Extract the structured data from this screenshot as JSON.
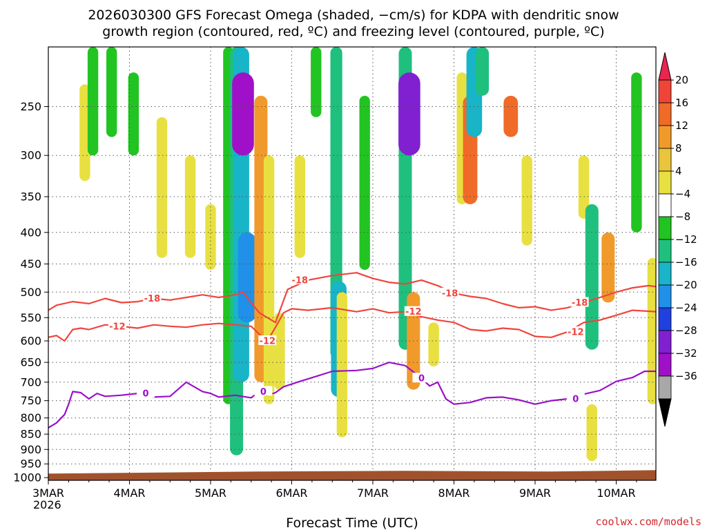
{
  "chart_data": {
    "type": "heatmap",
    "title_line1": "2026030300 GFS Forecast Omega (shaded, −cm/s) for KDPA with dendritic snow",
    "title_line2": "growth region (contoured, red, ºC) and freezing level (contoured, purple, ºC)",
    "xlabel": "Forecast Time (UTC)",
    "credit": "coolwx.com/models",
    "x_ticks": [
      "3MAR",
      "4MAR",
      "5MAR",
      "6MAR",
      "7MAR",
      "8MAR",
      "9MAR",
      "10MAR"
    ],
    "x_year": "2026",
    "x_range_days": [
      0,
      7.5
    ],
    "y_ticks": [
      250,
      300,
      350,
      400,
      450,
      500,
      550,
      600,
      650,
      700,
      750,
      800,
      850,
      900,
      950,
      1000
    ],
    "y_range_hpa": [
      200,
      1010
    ],
    "ground_pressure_hpa": 985,
    "colorbar": {
      "labels": [
        "20",
        "16",
        "12",
        "8",
        "4",
        "−4",
        "−8",
        "−12",
        "−16",
        "−20",
        "−24",
        "−28",
        "−32",
        "−36"
      ],
      "colors": [
        "#e8264f",
        "#f04438",
        "#f06a28",
        "#f09a2c",
        "#e9c43c",
        "#e8e040",
        "#ffffff",
        "#22c422",
        "#1fc07e",
        "#18b4c8",
        "#2090e8",
        "#2040e0",
        "#8020d0",
        "#a010c8",
        "#a8a8a8",
        "#000000"
      ]
    },
    "omega_blobs": [
      {
        "t": 0.45,
        "p": [
          230,
          330
        ],
        "v": 6
      },
      {
        "t": 0.55,
        "p": [
          200,
          300
        ],
        "v": -6
      },
      {
        "t": 0.78,
        "p": [
          200,
          280
        ],
        "v": -6
      },
      {
        "t": 1.05,
        "p": [
          220,
          300
        ],
        "v": -6
      },
      {
        "t": 1.4,
        "p": [
          260,
          440
        ],
        "v": 6
      },
      {
        "t": 1.75,
        "p": [
          300,
          440
        ],
        "v": 6
      },
      {
        "t": 2.0,
        "p": [
          360,
          460
        ],
        "v": 6
      },
      {
        "t": 2.22,
        "p": [
          200,
          760
        ],
        "v": -6
      },
      {
        "t": 2.32,
        "p": [
          200,
          920
        ],
        "v": -10
      },
      {
        "t": 2.38,
        "p": [
          200,
          700
        ],
        "v": -14
      },
      {
        "t": 2.4,
        "p": [
          220,
          300
        ],
        "v": -28
      },
      {
        "t": 2.45,
        "p": [
          400,
          560
        ],
        "v": -18
      },
      {
        "t": 2.62,
        "p": [
          240,
          700
        ],
        "v": 10
      },
      {
        "t": 2.72,
        "p": [
          300,
          760
        ],
        "v": 6
      },
      {
        "t": 2.85,
        "p": [
          540,
          720
        ],
        "v": 6
      },
      {
        "t": 3.1,
        "p": [
          300,
          440
        ],
        "v": 6
      },
      {
        "t": 3.3,
        "p": [
          200,
          260
        ],
        "v": -6
      },
      {
        "t": 3.55,
        "p": [
          200,
          640
        ],
        "v": -8
      },
      {
        "t": 3.58,
        "p": [
          480,
          740
        ],
        "v": -14
      },
      {
        "t": 3.62,
        "p": [
          500,
          860
        ],
        "v": 6
      },
      {
        "t": 3.9,
        "p": [
          240,
          460
        ],
        "v": -6
      },
      {
        "t": 4.4,
        "p": [
          200,
          620
        ],
        "v": -10
      },
      {
        "t": 4.45,
        "p": [
          220,
          300
        ],
        "v": -24
      },
      {
        "t": 4.5,
        "p": [
          500,
          720
        ],
        "v": 10
      },
      {
        "t": 4.75,
        "p": [
          560,
          660
        ],
        "v": 6
      },
      {
        "t": 5.1,
        "p": [
          220,
          360
        ],
        "v": 6
      },
      {
        "t": 5.2,
        "p": [
          240,
          360
        ],
        "v": 12
      },
      {
        "t": 5.25,
        "p": [
          200,
          280
        ],
        "v": -14
      },
      {
        "t": 5.35,
        "p": [
          200,
          240
        ],
        "v": -10
      },
      {
        "t": 5.7,
        "p": [
          240,
          280
        ],
        "v": 12
      },
      {
        "t": 5.9,
        "p": [
          300,
          420
        ],
        "v": 6
      },
      {
        "t": 6.6,
        "p": [
          300,
          380
        ],
        "v": 6
      },
      {
        "t": 6.7,
        "p": [
          360,
          620
        ],
        "v": -10
      },
      {
        "t": 6.7,
        "p": [
          760,
          940
        ],
        "v": 6
      },
      {
        "t": 6.9,
        "p": [
          400,
          520
        ],
        "v": 10
      },
      {
        "t": 7.25,
        "p": [
          220,
          400
        ],
        "v": -6
      },
      {
        "t": 7.45,
        "p": [
          440,
          760
        ],
        "v": 6
      }
    ],
    "contours": [
      {
        "label": "-18",
        "color": "#f0443c",
        "label_t": [
          1.28,
          3.1,
          4.95,
          6.55
        ],
        "t": [
          0,
          0.1,
          0.3,
          0.5,
          0.7,
          0.9,
          1.1,
          1.3,
          1.5,
          1.7,
          1.9,
          2.1,
          2.3,
          2.4,
          2.5,
          2.6,
          2.8,
          2.95,
          3.2,
          3.5,
          3.8,
          4.0,
          4.2,
          4.4,
          4.6,
          4.8,
          5.0,
          5.2,
          5.4,
          5.6,
          5.8,
          6.0,
          6.2,
          6.4,
          6.6,
          6.8,
          7.0,
          7.2,
          7.4,
          7.5
        ],
        "p": [
          535,
          525,
          518,
          522,
          512,
          520,
          518,
          512,
          515,
          510,
          505,
          510,
          505,
          500,
          520,
          540,
          560,
          495,
          478,
          470,
          465,
          475,
          482,
          485,
          478,
          488,
          502,
          508,
          512,
          522,
          530,
          528,
          535,
          530,
          520,
          510,
          500,
          492,
          488,
          490
        ]
      },
      {
        "label": "-12",
        "color": "#f0443c",
        "label_t": [
          0.85,
          2.7,
          4.5,
          6.5
        ],
        "t": [
          0,
          0.1,
          0.2,
          0.3,
          0.4,
          0.5,
          0.7,
          0.9,
          1.1,
          1.3,
          1.5,
          1.7,
          1.9,
          2.1,
          2.3,
          2.5,
          2.6,
          2.7,
          2.8,
          2.9,
          3.0,
          3.2,
          3.5,
          3.8,
          4.0,
          4.2,
          4.4,
          4.6,
          4.8,
          5.0,
          5.2,
          5.4,
          5.6,
          5.8,
          6.0,
          6.2,
          6.4,
          6.6,
          6.8,
          7.0,
          7.2,
          7.5
        ],
        "p": [
          592,
          588,
          600,
          575,
          572,
          575,
          565,
          568,
          572,
          565,
          568,
          570,
          565,
          562,
          565,
          568,
          585,
          600,
          570,
          540,
          532,
          535,
          530,
          538,
          532,
          540,
          538,
          548,
          555,
          560,
          575,
          578,
          572,
          575,
          590,
          592,
          580,
          560,
          555,
          545,
          535,
          538
        ]
      },
      {
        "label": "0",
        "color": "#9a10c8",
        "label_t": [
          1.2,
          2.65,
          4.6,
          6.5
        ],
        "t": [
          0,
          0.1,
          0.2,
          0.25,
          0.3,
          0.4,
          0.5,
          0.6,
          0.7,
          0.9,
          1.1,
          1.3,
          1.5,
          1.7,
          1.9,
          2.0,
          2.1,
          2.3,
          2.5,
          2.6,
          2.7,
          2.8,
          2.9,
          3.1,
          3.3,
          3.5,
          3.8,
          4.0,
          4.2,
          4.4,
          4.6,
          4.7,
          4.8,
          4.9,
          5.0,
          5.2,
          5.4,
          5.6,
          5.8,
          6.0,
          6.2,
          6.4,
          6.6,
          6.8,
          7.0,
          7.2,
          7.35,
          7.5
        ],
        "p": [
          830,
          815,
          790,
          760,
          725,
          728,
          745,
          730,
          738,
          735,
          730,
          740,
          738,
          700,
          725,
          730,
          740,
          735,
          742,
          725,
          735,
          728,
          712,
          698,
          685,
          672,
          670,
          665,
          650,
          658,
          690,
          710,
          700,
          745,
          760,
          755,
          742,
          740,
          748,
          760,
          750,
          745,
          732,
          722,
          698,
          688,
          672,
          672
        ]
      }
    ]
  }
}
